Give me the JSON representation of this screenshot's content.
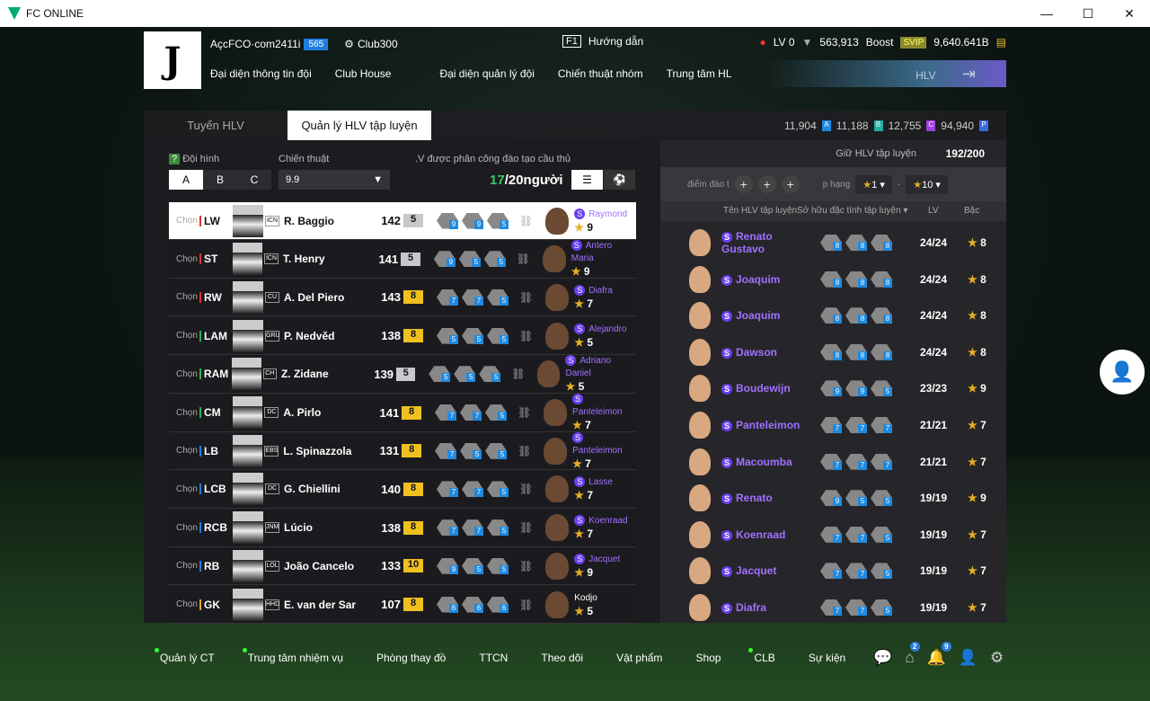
{
  "window": {
    "title": "FC ONLINE",
    "min": "—",
    "max": "☐",
    "close": "✕"
  },
  "header": {
    "account": "AçcFCO·com2411i",
    "account_level": "565",
    "club": "Club300",
    "guide_key": "F1",
    "guide": "Hướng dẫn",
    "lv": "LV 0",
    "coins": "563,913",
    "boost": "Boost",
    "svip": "SVIP",
    "bp": "9,640.641B",
    "nav": [
      "Đại diện thông tin đội",
      "Club House",
      "Đại diện quản lý đội",
      "Chiến thuật nhóm",
      "Trung tâm HL"
    ],
    "hlv": "HLV"
  },
  "tabs": [
    "Tuyển HLV",
    "Quản lý HLV tập luyện"
  ],
  "currencies": [
    {
      "value": "11,904",
      "letter": "A",
      "color": "#1f8ae0"
    },
    {
      "value": "11,188",
      "letter": "B",
      "color": "#1fb0a0"
    },
    {
      "value": "12,755",
      "letter": "C",
      "color": "#a040e0"
    },
    {
      "value": "94,940",
      "letter": "P",
      "color": "#3a6ae0"
    }
  ],
  "left": {
    "formation_label": "Đội hình",
    "tactic_label": "Chiến thuật",
    "assigned_label": ".V được phân công đào tạo cầu thủ",
    "squads": [
      "A",
      "B",
      "C"
    ],
    "tactic_value": "9.9",
    "count_current": "17",
    "count_rest": "/20người",
    "chon": "Chọn",
    "rows": [
      {
        "pos": "LW",
        "pc": "#e03030",
        "name": "R. Baggio",
        "season": "ICN",
        "ovr": "142",
        "lvl": "5",
        "traits": [
          "9",
          "9",
          "5"
        ],
        "coach": "Raymond",
        "s": true,
        "stars": "9",
        "sel": true
      },
      {
        "pos": "ST",
        "pc": "#e03030",
        "name": "T. Henry",
        "season": "ICN",
        "ovr": "141",
        "lvl": "5",
        "traits": [
          "9",
          "5",
          "5"
        ],
        "coach": "Antero Maria",
        "s": true,
        "stars": "9"
      },
      {
        "pos": "RW",
        "pc": "#e03030",
        "name": "A. Del Piero",
        "season": "CU",
        "ovr": "143",
        "lvl": "8",
        "traits": [
          "7",
          "7",
          "5"
        ],
        "coach": "Diafra",
        "s": true,
        "stars": "7"
      },
      {
        "pos": "LAM",
        "pc": "#30b050",
        "name": "P. Nedvěd",
        "season": "GRU",
        "ovr": "138",
        "lvl": "8",
        "traits": [
          "5",
          "5",
          "5"
        ],
        "coach": "Alejandro",
        "s": true,
        "stars": "5"
      },
      {
        "pos": "RAM",
        "pc": "#30b050",
        "name": "Z. Zidane",
        "season": "CH",
        "ovr": "139",
        "lvl": "5",
        "traits": [
          "5",
          "5",
          "5"
        ],
        "coach": "Adriano Daniel",
        "s": true,
        "stars": "5"
      },
      {
        "pos": "CM",
        "pc": "#30b050",
        "name": "A. Pirlo",
        "season": "DC",
        "ovr": "141",
        "lvl": "8",
        "traits": [
          "7",
          "7",
          "5"
        ],
        "coach": "Panteleimon",
        "s": true,
        "stars": "7"
      },
      {
        "pos": "LB",
        "pc": "#2080e0",
        "name": "L. Spinazzola",
        "season": "EBS",
        "ovr": "131",
        "lvl": "8",
        "traits": [
          "7",
          "5",
          "5"
        ],
        "coach": "Panteleimon",
        "s": true,
        "stars": "7"
      },
      {
        "pos": "LCB",
        "pc": "#2080e0",
        "name": "G. Chiellini",
        "season": "DC",
        "ovr": "140",
        "lvl": "8",
        "traits": [
          "7",
          "7",
          "5"
        ],
        "coach": "Lasse",
        "s": true,
        "stars": "7"
      },
      {
        "pos": "RCB",
        "pc": "#2080e0",
        "name": "Lúcio",
        "season": "JNM",
        "ovr": "138",
        "lvl": "8",
        "traits": [
          "7",
          "7",
          "5"
        ],
        "coach": "Koenraad",
        "s": true,
        "stars": "7"
      },
      {
        "pos": "RB",
        "pc": "#2080e0",
        "name": "João Cancelo",
        "season": "LOL",
        "ovr": "133",
        "lvl": "10",
        "traits": [
          "9",
          "5",
          "5"
        ],
        "coach": "Jacquet",
        "s": true,
        "stars": "9"
      },
      {
        "pos": "GK",
        "pc": "#e0b020",
        "name": "E. van der Sar",
        "season": "HHD",
        "ovr": "107",
        "lvl": "8",
        "traits": [
          "6",
          "6",
          "6"
        ],
        "coach": "Kodjo",
        "s": false,
        "stars": "5"
      }
    ]
  },
  "right": {
    "keep_label": "Giữ HLV tập luyện",
    "keep_value": "192/200",
    "points_label": "điểm đào t",
    "rank_label": "p hạng",
    "rank_from": "1",
    "rank_to": "10",
    "dash": "-",
    "columns": [
      "Tên HLV tập luyện",
      "Sở hữu đặc tính tập luyện ▾",
      "LV",
      "Bậc"
    ],
    "rows": [
      {
        "name": "Renato Gustavo",
        "traits": [
          "8",
          "8",
          "8"
        ],
        "lv": "24/24",
        "rank": "8"
      },
      {
        "name": "Joaquim",
        "traits": [
          "8",
          "8",
          "8"
        ],
        "lv": "24/24",
        "rank": "8"
      },
      {
        "name": "Joaquim",
        "traits": [
          "8",
          "8",
          "8"
        ],
        "lv": "24/24",
        "rank": "8"
      },
      {
        "name": "Dawson",
        "traits": [
          "8",
          "8",
          "8"
        ],
        "lv": "24/24",
        "rank": "8"
      },
      {
        "name": "Boudewijn",
        "traits": [
          "9",
          "9",
          "5"
        ],
        "lv": "23/23",
        "rank": "9"
      },
      {
        "name": "Panteleimon",
        "traits": [
          "7",
          "7",
          "7"
        ],
        "lv": "21/21",
        "rank": "7"
      },
      {
        "name": "Macoumba",
        "traits": [
          "7",
          "7",
          "7"
        ],
        "lv": "21/21",
        "rank": "7"
      },
      {
        "name": "Renato",
        "traits": [
          "9",
          "5",
          "5"
        ],
        "lv": "19/19",
        "rank": "9"
      },
      {
        "name": "Koenraad",
        "traits": [
          "7",
          "7",
          "5"
        ],
        "lv": "19/19",
        "rank": "7"
      },
      {
        "name": "Jacquet",
        "traits": [
          "7",
          "7",
          "5"
        ],
        "lv": "19/19",
        "rank": "7"
      },
      {
        "name": "Diafra",
        "traits": [
          "7",
          "7",
          "5"
        ],
        "lv": "19/19",
        "rank": "7"
      }
    ]
  },
  "bottom": {
    "items": [
      {
        "label": "Quản lý CT",
        "dot": true
      },
      {
        "label": "Trung tâm nhiệm vụ",
        "dot": true
      },
      {
        "label": "Phòng thay đồ"
      },
      {
        "label": "TTCN"
      },
      {
        "label": "Theo dõi"
      },
      {
        "label": "Vật phẩm"
      },
      {
        "label": "Shop"
      },
      {
        "label": "CLB",
        "dot": true
      },
      {
        "label": "Sự kiện"
      }
    ],
    "home_badge": "2",
    "bell_badge": "9"
  }
}
